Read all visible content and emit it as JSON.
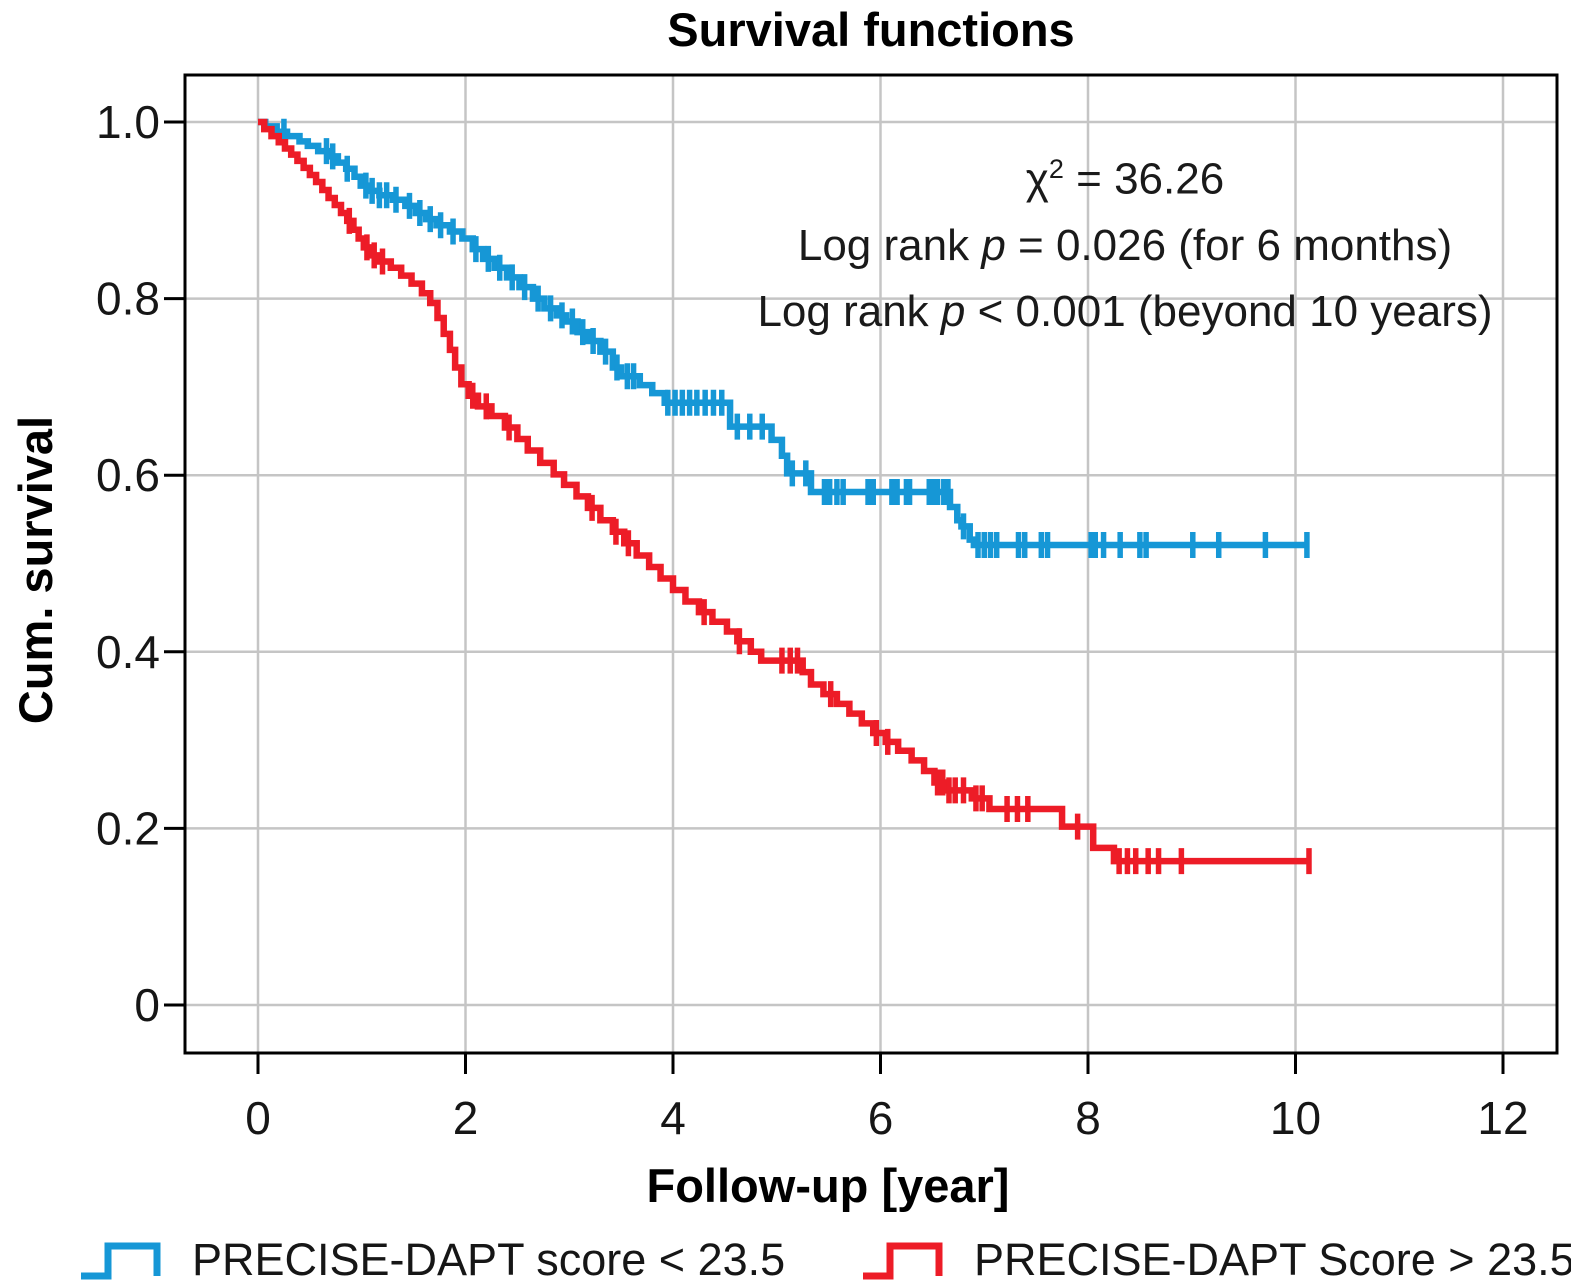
{
  "title": "Survival functions",
  "annotation": {
    "chi_symbol": "χ",
    "chi_exponent": "2",
    "chi_value": " = 36.26",
    "line2_pre": "Log rank ",
    "line2_p": "p",
    "line2_post": " = 0.026 (for 6 months)",
    "line3_pre": "Log rank ",
    "line3_p": "p",
    "line3_post": " < 0.001 (beyond 10 years)"
  },
  "chart_data": {
    "type": "line",
    "subtype": "kaplan-meier-step-curves-with-censor-marks",
    "title": "Survival functions",
    "xlabel": "Follow-up [year]",
    "ylabel": "Cum. survival",
    "xlim": [
      -0.7,
      12.5
    ],
    "ylim": [
      -0.06,
      1.05
    ],
    "grid": true,
    "legend_position": "bottom",
    "x_ticks": {
      "labels": [
        "0",
        "2",
        "4",
        "6",
        "8",
        "10",
        "12"
      ],
      "values": [
        0,
        2,
        4,
        6,
        8,
        10,
        12
      ]
    },
    "y_ticks": {
      "labels": [
        "1.0",
        "0.8",
        "0.6",
        "0.4",
        "0.2",
        "0"
      ],
      "values": [
        1.0,
        0.8,
        0.6,
        0.4,
        0.2,
        0
      ]
    },
    "series": [
      {
        "name": "PRECISE-DAPT score < 23.5",
        "color": "#1697d6",
        "end_x": 10.12,
        "steps": [
          [
            0,
            1.0
          ],
          [
            0.07,
            0.995
          ],
          [
            0.18,
            0.989
          ],
          [
            0.28,
            0.984
          ],
          [
            0.4,
            0.978
          ],
          [
            0.48,
            0.973
          ],
          [
            0.58,
            0.967
          ],
          [
            0.67,
            0.961
          ],
          [
            0.77,
            0.954
          ],
          [
            0.85,
            0.947
          ],
          [
            0.93,
            0.938
          ],
          [
            0.99,
            0.928
          ],
          [
            1.06,
            0.922
          ],
          [
            1.17,
            0.917
          ],
          [
            1.3,
            0.912
          ],
          [
            1.42,
            0.905
          ],
          [
            1.52,
            0.897
          ],
          [
            1.62,
            0.89
          ],
          [
            1.72,
            0.883
          ],
          [
            1.85,
            0.876
          ],
          [
            1.97,
            0.868
          ],
          [
            2.07,
            0.856
          ],
          [
            2.17,
            0.845
          ],
          [
            2.28,
            0.835
          ],
          [
            2.4,
            0.824
          ],
          [
            2.52,
            0.813
          ],
          [
            2.65,
            0.8
          ],
          [
            2.76,
            0.789
          ],
          [
            2.88,
            0.781
          ],
          [
            2.97,
            0.774
          ],
          [
            3.08,
            0.762
          ],
          [
            3.18,
            0.752
          ],
          [
            3.3,
            0.74
          ],
          [
            3.42,
            0.722
          ],
          [
            3.5,
            0.712
          ],
          [
            3.68,
            0.702
          ],
          [
            3.8,
            0.693
          ],
          [
            3.92,
            0.682
          ],
          [
            4.55,
            0.655
          ],
          [
            4.95,
            0.64
          ],
          [
            5.05,
            0.622
          ],
          [
            5.1,
            0.602
          ],
          [
            5.33,
            0.581
          ],
          [
            6.67,
            0.564
          ],
          [
            6.74,
            0.549
          ],
          [
            6.78,
            0.542
          ],
          [
            6.86,
            0.527
          ],
          [
            6.9,
            0.521
          ]
        ],
        "censor_x": [
          0.25,
          0.66,
          0.72,
          0.86,
          1.04,
          1.1,
          1.17,
          1.24,
          1.33,
          1.46,
          1.56,
          1.66,
          1.76,
          1.88,
          2.1,
          2.22,
          2.33,
          2.45,
          2.57,
          2.7,
          2.82,
          2.93,
          3.03,
          3.13,
          3.23,
          3.35,
          3.46,
          3.56,
          3.62,
          3.95,
          4.02,
          4.09,
          4.16,
          4.23,
          4.31,
          4.39,
          4.47,
          4.62,
          4.74,
          4.86,
          5.15,
          5.28,
          5.46,
          5.51,
          5.58,
          5.64,
          5.88,
          5.93,
          6.11,
          6.16,
          6.25,
          6.28,
          6.47,
          6.51,
          6.55,
          6.61,
          6.65,
          6.8,
          6.94,
          7.0,
          7.06,
          7.12,
          7.33,
          7.39,
          7.55,
          7.61,
          8.03,
          8.07,
          8.15,
          8.31,
          8.5,
          8.56,
          9.01,
          9.26,
          9.71,
          10.11
        ]
      },
      {
        "name": "PRECISE-DAPT Score > 23.5",
        "color": "#ed1c27",
        "end_x": 10.13,
        "steps": [
          [
            0,
            1.0
          ],
          [
            0.06,
            0.992
          ],
          [
            0.13,
            0.984
          ],
          [
            0.2,
            0.977
          ],
          [
            0.26,
            0.97
          ],
          [
            0.32,
            0.963
          ],
          [
            0.38,
            0.956
          ],
          [
            0.44,
            0.948
          ],
          [
            0.5,
            0.94
          ],
          [
            0.56,
            0.932
          ],
          [
            0.62,
            0.923
          ],
          [
            0.68,
            0.914
          ],
          [
            0.74,
            0.906
          ],
          [
            0.8,
            0.897
          ],
          [
            0.86,
            0.888
          ],
          [
            0.92,
            0.878
          ],
          [
            0.97,
            0.868
          ],
          [
            1.02,
            0.858
          ],
          [
            1.08,
            0.849
          ],
          [
            1.15,
            0.842
          ],
          [
            1.28,
            0.835
          ],
          [
            1.38,
            0.826
          ],
          [
            1.48,
            0.817
          ],
          [
            1.58,
            0.806
          ],
          [
            1.66,
            0.795
          ],
          [
            1.73,
            0.778
          ],
          [
            1.79,
            0.76
          ],
          [
            1.85,
            0.742
          ],
          [
            1.9,
            0.722
          ],
          [
            1.96,
            0.703
          ],
          [
            2.03,
            0.69
          ],
          [
            2.12,
            0.678
          ],
          [
            2.25,
            0.667
          ],
          [
            2.38,
            0.654
          ],
          [
            2.5,
            0.641
          ],
          [
            2.6,
            0.628
          ],
          [
            2.72,
            0.614
          ],
          [
            2.85,
            0.601
          ],
          [
            2.95,
            0.589
          ],
          [
            3.07,
            0.576
          ],
          [
            3.18,
            0.563
          ],
          [
            3.3,
            0.549
          ],
          [
            3.42,
            0.536
          ],
          [
            3.53,
            0.523
          ],
          [
            3.65,
            0.509
          ],
          [
            3.77,
            0.496
          ],
          [
            3.88,
            0.483
          ],
          [
            4.0,
            0.47
          ],
          [
            4.12,
            0.457
          ],
          [
            4.25,
            0.445
          ],
          [
            4.38,
            0.434
          ],
          [
            4.52,
            0.423
          ],
          [
            4.62,
            0.412
          ],
          [
            4.75,
            0.4
          ],
          [
            4.85,
            0.39
          ],
          [
            5.25,
            0.377
          ],
          [
            5.33,
            0.363
          ],
          [
            5.45,
            0.352
          ],
          [
            5.58,
            0.341
          ],
          [
            5.7,
            0.33
          ],
          [
            5.82,
            0.319
          ],
          [
            5.93,
            0.308
          ],
          [
            6.05,
            0.298
          ],
          [
            6.17,
            0.288
          ],
          [
            6.3,
            0.277
          ],
          [
            6.42,
            0.265
          ],
          [
            6.52,
            0.252
          ],
          [
            6.62,
            0.243
          ],
          [
            6.88,
            0.234
          ],
          [
            7.05,
            0.222
          ],
          [
            7.75,
            0.202
          ],
          [
            8.05,
            0.178
          ],
          [
            8.25,
            0.163
          ]
        ],
        "censor_x": [
          0.88,
          1.05,
          1.12,
          1.2,
          2.07,
          2.2,
          2.42,
          3.22,
          3.45,
          3.57,
          4.3,
          4.64,
          5.05,
          5.13,
          5.2,
          5.52,
          5.96,
          6.07,
          6.55,
          6.6,
          6.66,
          6.72,
          6.8,
          6.92,
          6.98,
          7.22,
          7.32,
          7.42,
          7.9,
          8.3,
          8.38,
          8.46,
          8.58,
          8.68,
          8.9,
          10.13
        ]
      }
    ]
  },
  "style_colors": {
    "grid": "#c5c5c5",
    "frame": "#000000",
    "tick_text": "#161616"
  }
}
